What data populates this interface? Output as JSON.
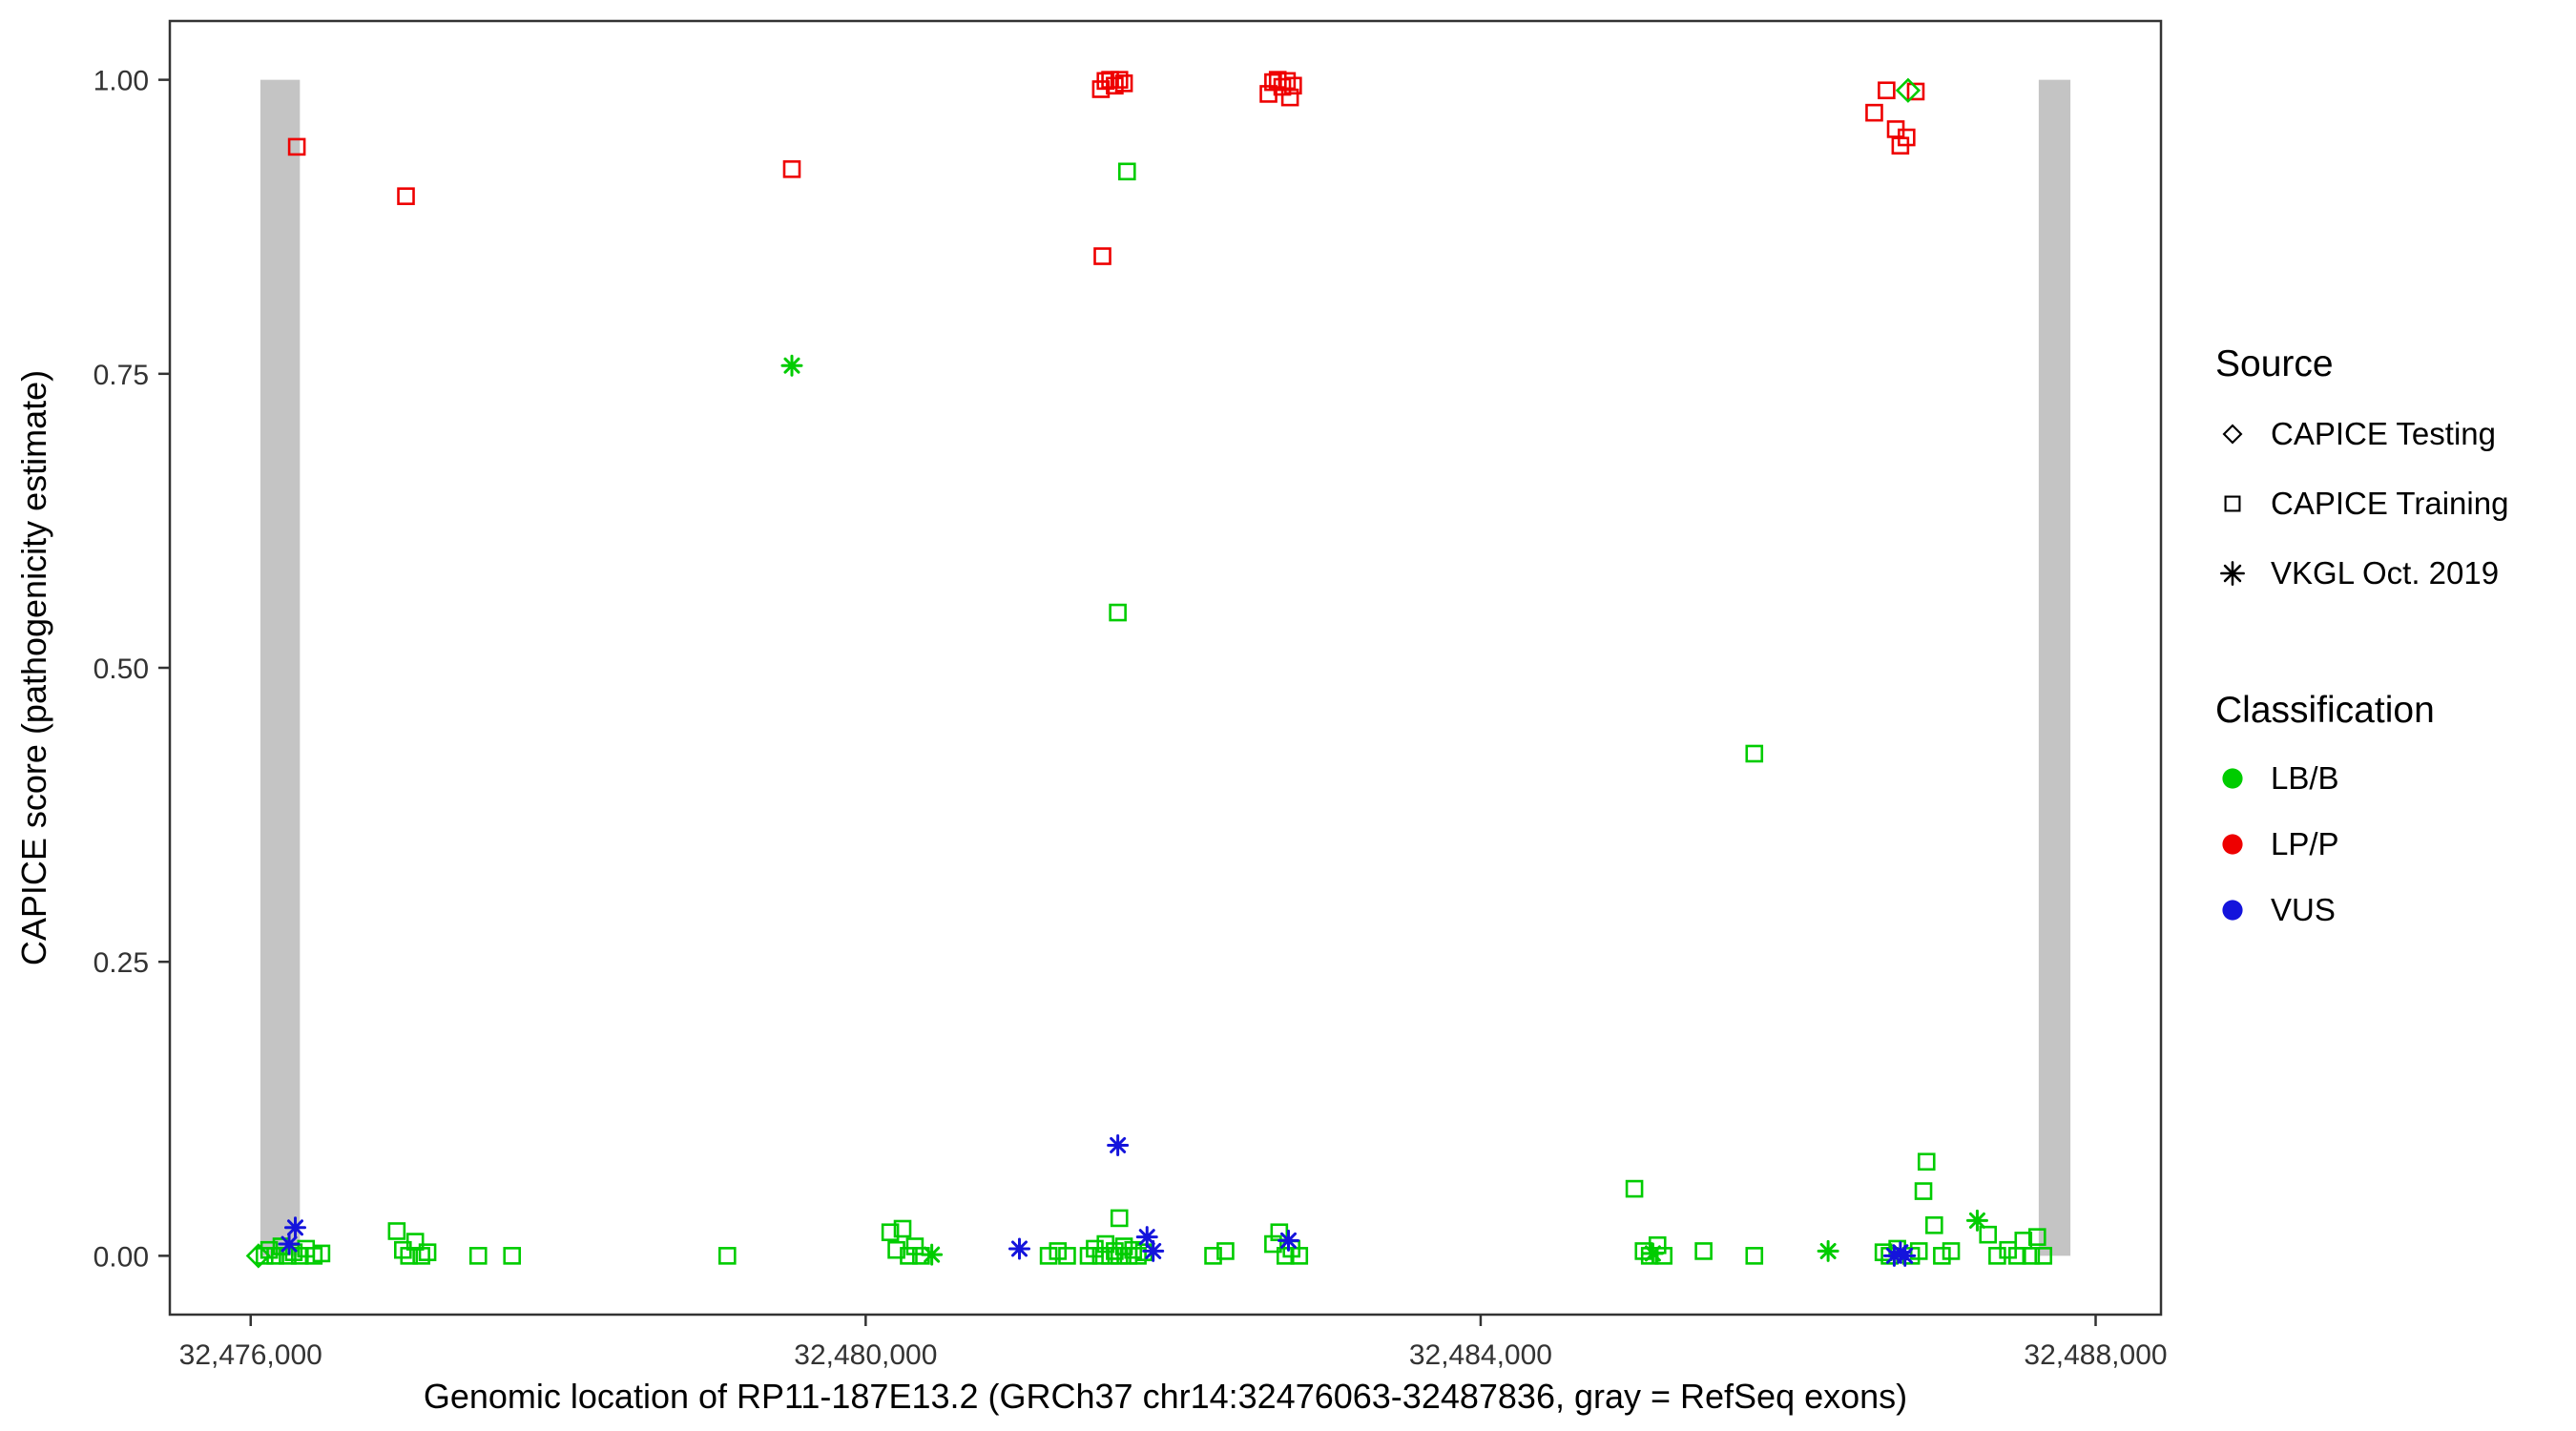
{
  "chart_data": {
    "type": "scatter",
    "title": "",
    "xlabel": "Genomic location of RP11-187E13.2 (GRCh37 chr14:32476063-32487836, gray = RefSeq exons)",
    "ylabel": "CAPICE score (pathogenicity estimate)",
    "x_domain": [
      32475474,
      32488425
    ],
    "y_domain": [
      -0.05,
      1.05
    ],
    "grid": "off",
    "legend_position": "right",
    "x_ticks": [
      {
        "value": 32476000,
        "label": "32,476,000"
      },
      {
        "value": 32480000,
        "label": "32,480,000"
      },
      {
        "value": 32484000,
        "label": "32,484,000"
      },
      {
        "value": 32488000,
        "label": "32,488,000"
      }
    ],
    "y_ticks": [
      {
        "value": 0.0,
        "label": "0.00"
      },
      {
        "value": 0.25,
        "label": "0.25"
      },
      {
        "value": 0.5,
        "label": "0.50"
      },
      {
        "value": 0.75,
        "label": "0.75"
      },
      {
        "value": 1.0,
        "label": "1.00"
      }
    ],
    "exons": {
      "color": "#C4C4C4",
      "y_from": 0.0,
      "y_to": 1.0,
      "regions": [
        {
          "start": 32476063,
          "end": 32476320
        },
        {
          "start": 32487630,
          "end": 32487836
        }
      ]
    },
    "series": [
      {
        "source": "CAPICE Training",
        "classification": "LP/P",
        "symbol": "square",
        "color": "#EE0000",
        "points": [
          [
            32476300,
            0.943
          ],
          [
            32477010,
            0.901
          ],
          [
            32479520,
            0.924
          ],
          [
            32481530,
            0.992
          ],
          [
            32481560,
            0.999
          ],
          [
            32481590,
            1.0
          ],
          [
            32481620,
            0.995
          ],
          [
            32481650,
            1.0
          ],
          [
            32481680,
            0.997
          ],
          [
            32481540,
            0.85
          ],
          [
            32482620,
            0.988
          ],
          [
            32482650,
            0.998
          ],
          [
            32482680,
            1.0
          ],
          [
            32482710,
            0.994
          ],
          [
            32482740,
            0.999
          ],
          [
            32482760,
            0.985
          ],
          [
            32482780,
            0.995
          ],
          [
            32486560,
            0.972
          ],
          [
            32486640,
            0.991
          ],
          [
            32486830,
            0.99
          ],
          [
            32486700,
            0.958
          ],
          [
            32486730,
            0.944
          ],
          [
            32486770,
            0.951
          ]
        ]
      },
      {
        "source": "CAPICE Training",
        "classification": "LB/B",
        "symbol": "square",
        "color": "#00CC00",
        "points": [
          [
            32481700,
            0.922
          ],
          [
            32481640,
            0.547
          ],
          [
            32485780,
            0.427
          ],
          [
            32476090,
            0.0
          ],
          [
            32476120,
            0.005
          ],
          [
            32476160,
            0.0
          ],
          [
            32476200,
            0.008
          ],
          [
            32476240,
            0.0
          ],
          [
            32476280,
            0.003
          ],
          [
            32476320,
            0.0
          ],
          [
            32476360,
            0.006
          ],
          [
            32476410,
            0.0
          ],
          [
            32476460,
            0.002
          ],
          [
            32476950,
            0.021
          ],
          [
            32476990,
            0.005
          ],
          [
            32477030,
            0.0
          ],
          [
            32477070,
            0.012
          ],
          [
            32477110,
            0.0
          ],
          [
            32477150,
            0.003
          ],
          [
            32477480,
            0.0
          ],
          [
            32477700,
            0.0
          ],
          [
            32479100,
            0.0
          ],
          [
            32480160,
            0.02
          ],
          [
            32480200,
            0.005
          ],
          [
            32480240,
            0.023
          ],
          [
            32480280,
            0.0
          ],
          [
            32480320,
            0.008
          ],
          [
            32480360,
            0.0
          ],
          [
            32481190,
            0.0
          ],
          [
            32481250,
            0.004
          ],
          [
            32481310,
            0.0
          ],
          [
            32481450,
            0.0
          ],
          [
            32481490,
            0.006
          ],
          [
            32481530,
            0.0
          ],
          [
            32481560,
            0.01
          ],
          [
            32481590,
            0.0
          ],
          [
            32481620,
            0.004
          ],
          [
            32481650,
            0.0
          ],
          [
            32481650,
            0.032
          ],
          [
            32481680,
            0.008
          ],
          [
            32481710,
            0.0
          ],
          [
            32481740,
            0.005
          ],
          [
            32481770,
            0.0
          ],
          [
            32481810,
            0.003
          ],
          [
            32482260,
            0.0
          ],
          [
            32482340,
            0.004
          ],
          [
            32482650,
            0.01
          ],
          [
            32482690,
            0.02
          ],
          [
            32482730,
            0.0
          ],
          [
            32482770,
            0.006
          ],
          [
            32482820,
            0.0
          ],
          [
            32485000,
            0.057
          ],
          [
            32485060,
            0.004
          ],
          [
            32485100,
            0.0
          ],
          [
            32485150,
            0.009
          ],
          [
            32485190,
            0.0
          ],
          [
            32485450,
            0.004
          ],
          [
            32485780,
            0.0
          ],
          [
            32486620,
            0.003
          ],
          [
            32486660,
            0.0
          ],
          [
            32486710,
            0.006
          ],
          [
            32486800,
            0.0
          ],
          [
            32486850,
            0.004
          ],
          [
            32486880,
            0.055
          ],
          [
            32486900,
            0.08
          ],
          [
            32486950,
            0.026
          ],
          [
            32487000,
            0.0
          ],
          [
            32487060,
            0.004
          ],
          [
            32487300,
            0.018
          ],
          [
            32487360,
            0.0
          ],
          [
            32487430,
            0.005
          ],
          [
            32487490,
            0.0
          ],
          [
            32487530,
            0.013
          ],
          [
            32487580,
            0.0
          ],
          [
            32487620,
            0.016
          ],
          [
            32487660,
            0.0
          ]
        ]
      },
      {
        "source": "CAPICE Testing",
        "classification": "LB/B",
        "symbol": "diamond",
        "color": "#00CC00",
        "points": [
          [
            32476050,
            0.0
          ],
          [
            32486780,
            0.991
          ]
        ]
      },
      {
        "source": "VKGL Oct. 2019",
        "classification": "LB/B",
        "symbol": "asterisk",
        "color": "#00CC00",
        "points": [
          [
            32479520,
            0.757
          ],
          [
            32480430,
            0.001
          ],
          [
            32485120,
            0.002
          ],
          [
            32486260,
            0.004
          ],
          [
            32487230,
            0.03
          ]
        ]
      },
      {
        "source": "VKGL Oct. 2019",
        "classification": "VUS",
        "symbol": "asterisk",
        "color": "#1414DC",
        "points": [
          [
            32476250,
            0.01
          ],
          [
            32476290,
            0.024
          ],
          [
            32481000,
            0.006
          ],
          [
            32481640,
            0.094
          ],
          [
            32481830,
            0.016
          ],
          [
            32481870,
            0.004
          ],
          [
            32482750,
            0.013
          ],
          [
            32486690,
            0.0
          ],
          [
            32486730,
            0.003
          ],
          [
            32486760,
            0.0
          ]
        ]
      }
    ],
    "legend": {
      "source": {
        "title": "Source",
        "items": [
          {
            "label": "CAPICE Testing",
            "symbol": "diamond"
          },
          {
            "label": "CAPICE Training",
            "symbol": "square"
          },
          {
            "label": "VKGL Oct. 2019",
            "symbol": "asterisk"
          }
        ]
      },
      "classification": {
        "title": "Classification",
        "items": [
          {
            "label": "LB/B",
            "color": "#00CC00"
          },
          {
            "label": "LP/P",
            "color": "#EE0000"
          },
          {
            "label": "VUS",
            "color": "#1414DC"
          }
        ]
      }
    }
  }
}
